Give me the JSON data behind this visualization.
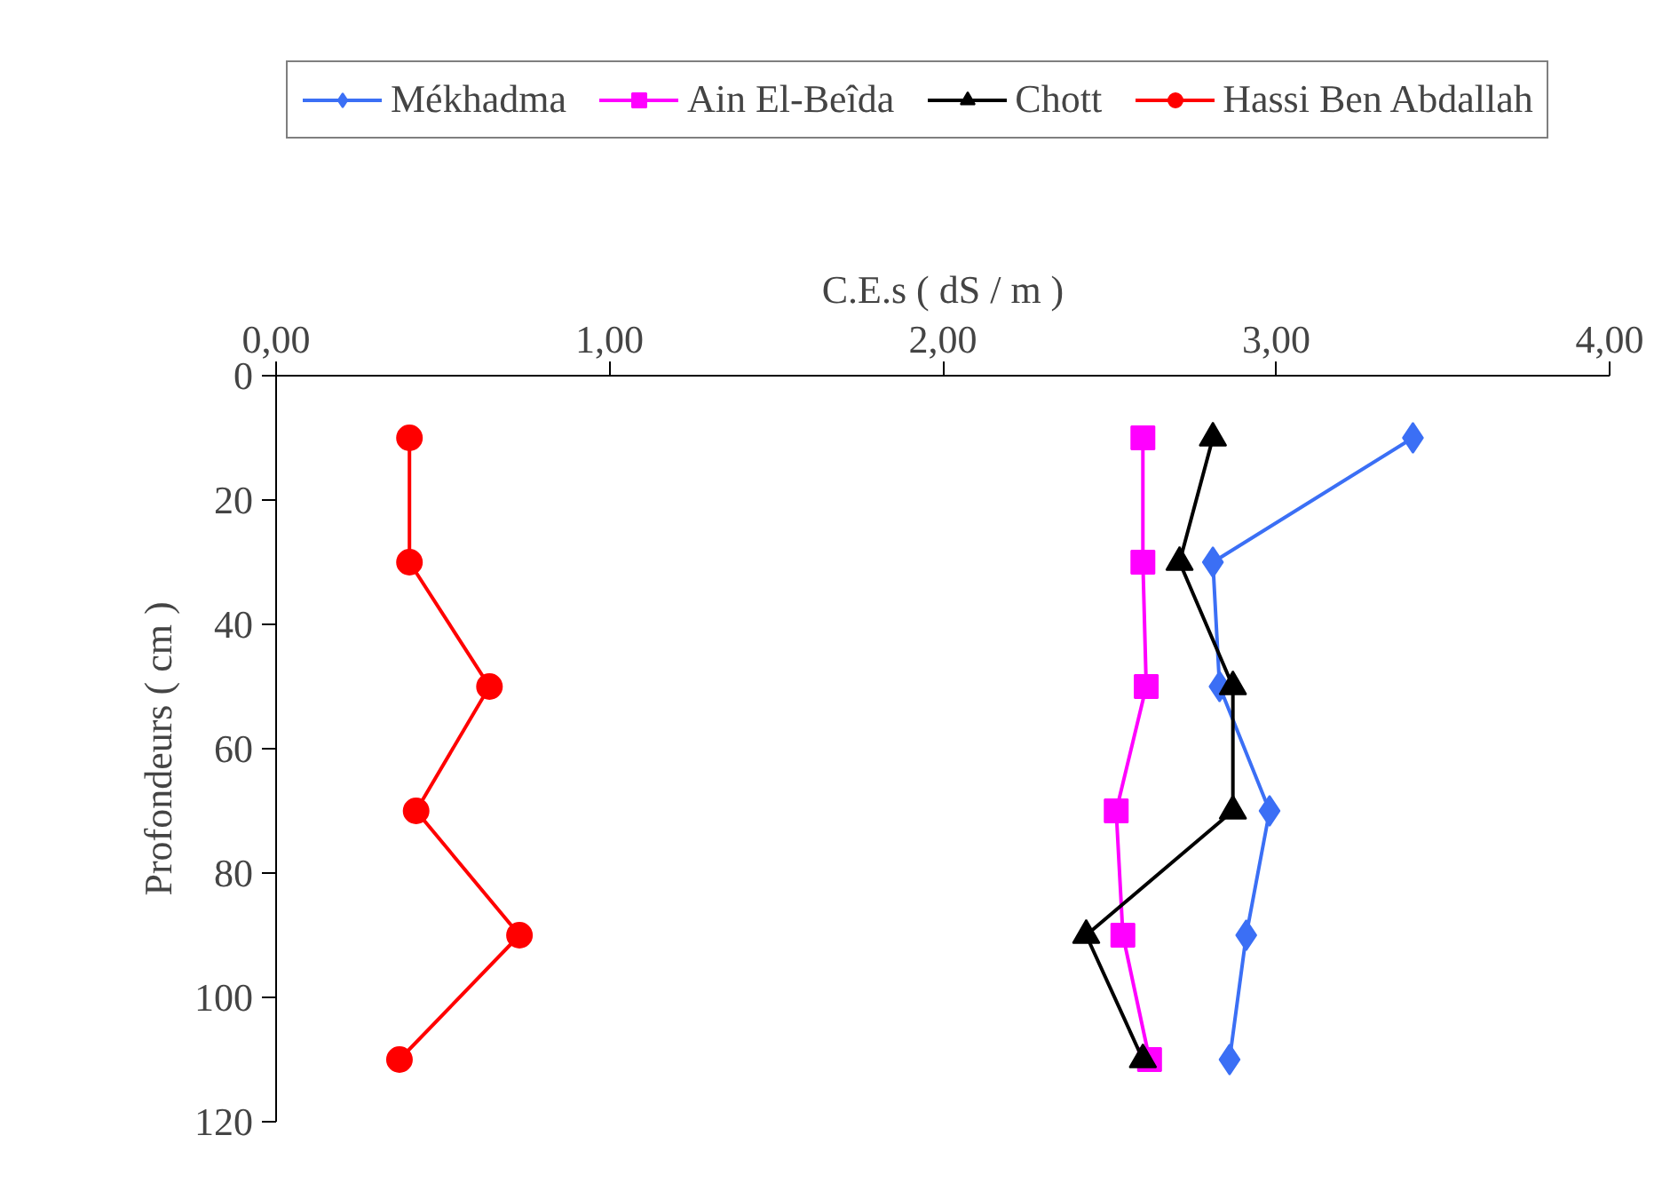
{
  "chart_data": {
    "type": "line",
    "xlabel": "C.E.s ( dS / m )",
    "ylabel": "Profondeurs ( cm )",
    "xlim": [
      0,
      4
    ],
    "ylim": [
      120,
      0
    ],
    "xticks": [
      {
        "value": 0,
        "label": "0,00"
      },
      {
        "value": 1,
        "label": "1,00"
      },
      {
        "value": 2,
        "label": "2,00"
      },
      {
        "value": 3,
        "label": "3,00"
      },
      {
        "value": 4,
        "label": "4,00"
      }
    ],
    "yticks": [
      0,
      20,
      40,
      60,
      80,
      100,
      120
    ],
    "grid": false,
    "legend": "top",
    "line_style": "solid",
    "series": [
      {
        "name": "Mékhadma",
        "color": "#3b6ff5",
        "marker": "diamond",
        "x": [
          3.41,
          2.81,
          2.83,
          2.98,
          2.91,
          2.86
        ],
        "values": [
          10,
          30,
          50,
          70,
          90,
          110
        ]
      },
      {
        "name": "Ain El-Beîda",
        "color": "#ff00ff",
        "marker": "square",
        "x": [
          2.6,
          2.6,
          2.61,
          2.52,
          2.54,
          2.62
        ],
        "values": [
          10,
          30,
          50,
          70,
          90,
          110
        ]
      },
      {
        "name": "Chott",
        "color": "#000000",
        "marker": "triangle",
        "x": [
          2.81,
          2.71,
          2.87,
          2.87,
          2.43,
          2.6
        ],
        "values": [
          10,
          30,
          50,
          70,
          90,
          110
        ]
      },
      {
        "name": "Hassi Ben Abdallah",
        "color": "#ff0000",
        "marker": "circle",
        "x": [
          0.4,
          0.4,
          0.64,
          0.42,
          0.73,
          0.37
        ],
        "values": [
          10,
          30,
          50,
          70,
          90,
          110
        ]
      }
    ]
  }
}
